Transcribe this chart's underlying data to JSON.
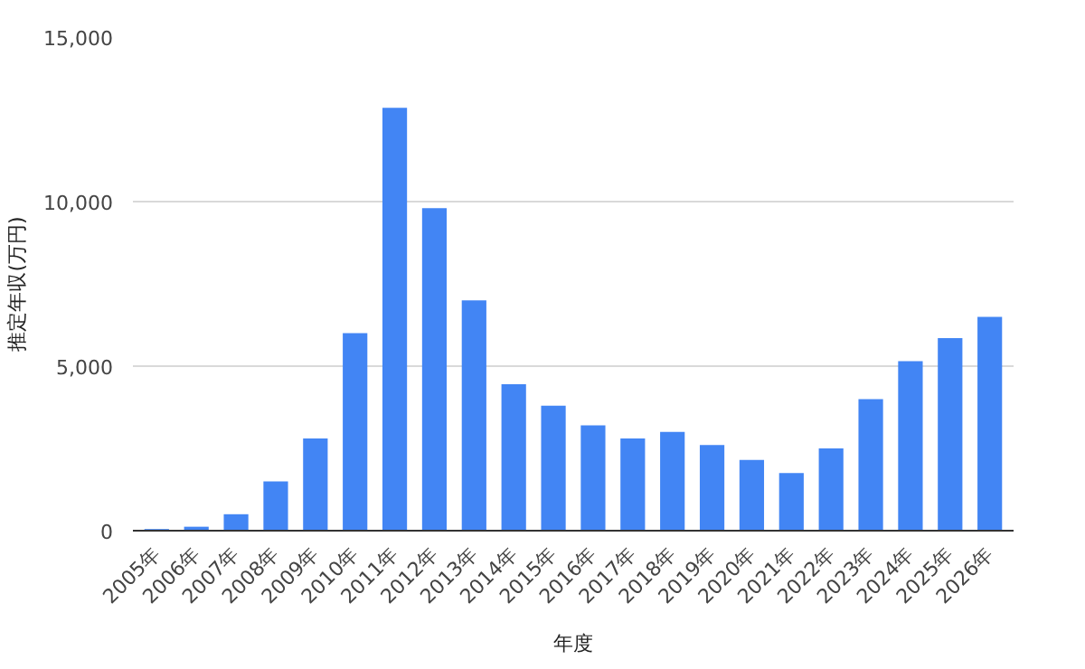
{
  "chart_data": {
    "type": "bar",
    "xlabel": "年度",
    "ylabel": "推定年収(万円)",
    "categories": [
      "2005年",
      "2006年",
      "2007年",
      "2008年",
      "2009年",
      "2010年",
      "2011年",
      "2012年",
      "2013年",
      "2014年",
      "2015年",
      "2016年",
      "2017年",
      "2018年",
      "2019年",
      "2020年",
      "2021年",
      "2022年",
      "2023年",
      "2024年",
      "2025年",
      "2026年"
    ],
    "values": [
      50,
      120,
      500,
      1500,
      2800,
      6000,
      12850,
      9800,
      7000,
      4450,
      3800,
      3200,
      2800,
      3000,
      2600,
      2150,
      1750,
      2500,
      4000,
      5150,
      5850,
      6500
    ],
    "color": "#4285f4",
    "ylim": [
      0,
      15000
    ],
    "yticks": [
      {
        "value": 0,
        "label": "0"
      },
      {
        "value": 5000,
        "label": "5,000"
      },
      {
        "value": 10000,
        "label": "10,000"
      },
      {
        "value": 15000,
        "label": "15,000"
      }
    ],
    "grid": "y"
  }
}
